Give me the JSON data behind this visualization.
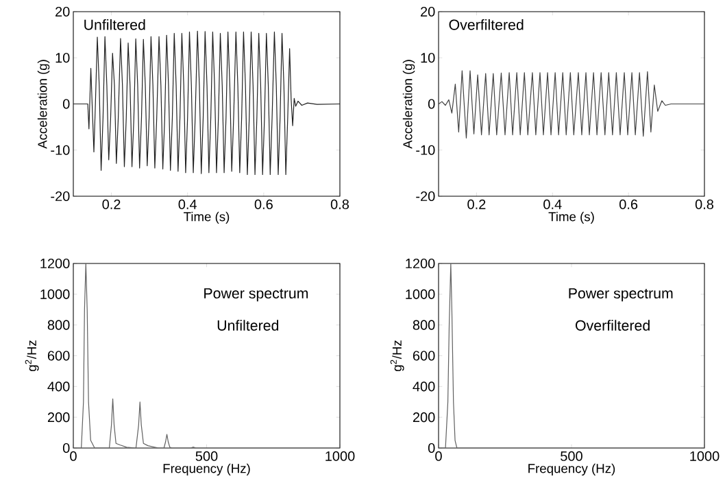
{
  "chart_data": [
    {
      "type": "line",
      "xlabel": "Time (s)",
      "ylabel": "Acceleration (g)",
      "xlim": [
        0.1,
        0.8
      ],
      "ylim": [
        -20,
        20
      ],
      "xticks": [
        0.2,
        0.4,
        0.6,
        0.8
      ],
      "yticks": [
        -20,
        -10,
        0,
        10,
        20
      ],
      "annotations": [
        "Unfiltered"
      ],
      "series": [
        {
          "color": "#202020",
          "x": [
            0.1,
            0.138,
            0.141,
            0.146,
            0.154,
            0.158,
            0.163,
            0.168,
            0.173,
            0.178,
            0.183,
            0.188,
            0.193,
            0.198,
            0.203,
            0.208,
            0.213,
            0.218,
            0.224,
            0.229,
            0.234,
            0.239,
            0.244,
            0.249,
            0.254,
            0.259,
            0.264,
            0.269,
            0.274,
            0.279,
            0.284,
            0.289,
            0.294,
            0.299,
            0.304,
            0.309,
            0.314,
            0.319,
            0.325,
            0.33,
            0.335,
            0.34,
            0.345,
            0.35,
            0.355,
            0.36,
            0.365,
            0.37,
            0.375,
            0.38,
            0.385,
            0.39,
            0.395,
            0.4,
            0.405,
            0.41,
            0.415,
            0.42,
            0.426,
            0.431,
            0.436,
            0.441,
            0.446,
            0.451,
            0.456,
            0.461,
            0.466,
            0.471,
            0.476,
            0.481,
            0.486,
            0.491,
            0.496,
            0.501,
            0.506,
            0.511,
            0.516,
            0.521,
            0.527,
            0.532,
            0.537,
            0.542,
            0.547,
            0.552,
            0.557,
            0.562,
            0.567,
            0.572,
            0.577,
            0.582,
            0.587,
            0.592,
            0.597,
            0.602,
            0.607,
            0.612,
            0.617,
            0.622,
            0.628,
            0.633,
            0.638,
            0.643,
            0.648,
            0.653,
            0.658,
            0.663,
            0.668,
            0.672,
            0.676,
            0.68,
            0.684,
            0.69,
            0.7,
            0.715,
            0.74,
            0.8
          ],
          "values": [
            0,
            0,
            -5.4,
            7.7,
            -10.4,
            0,
            14.5,
            4,
            -14.4,
            -3,
            14.6,
            4,
            -12.1,
            -3,
            11,
            4,
            -12.9,
            -3,
            14.2,
            4,
            -13.6,
            -3,
            13.2,
            4,
            -13.6,
            -3,
            14.1,
            4,
            -13.9,
            -3,
            14,
            4,
            -13.4,
            -3,
            14.6,
            4,
            -13.9,
            -3,
            14.6,
            4,
            -14.1,
            -3,
            14.9,
            4,
            -14.4,
            -3,
            15.3,
            4,
            -14.6,
            -3,
            15.3,
            4,
            -14.9,
            -3,
            15.6,
            4,
            -14.9,
            -3,
            15.8,
            4,
            -15.1,
            -3,
            15.7,
            4,
            -14.9,
            -3,
            15.6,
            4,
            -14.9,
            -3,
            15.3,
            4,
            -14.9,
            -3,
            15.6,
            4,
            -14.6,
            -3,
            15.6,
            4,
            -14.9,
            -3,
            15.6,
            4,
            -15.3,
            -3,
            15.6,
            4,
            -15.3,
            -3,
            15.3,
            4,
            -15.3,
            -3,
            15.3,
            4,
            -15.3,
            -3,
            15.6,
            4,
            -15.3,
            -3,
            15.3,
            4,
            -15.3,
            -3,
            12,
            1,
            -4.7,
            1.2,
            -0.5,
            0.6,
            -0.3,
            0.2,
            -0.1,
            0
          ]
        }
      ]
    },
    {
      "type": "line",
      "xlabel": "Time (s)",
      "ylabel": "Acceleration (g)",
      "xlim": [
        0.1,
        0.8
      ],
      "ylim": [
        -20,
        20
      ],
      "xticks": [
        0.2,
        0.4,
        0.6,
        0.8
      ],
      "yticks": [
        -20,
        -10,
        0,
        10,
        20
      ],
      "annotations": [
        "Overfiltered"
      ],
      "series": [
        {
          "color": "#404040",
          "x": [
            0.1,
            0.109,
            0.118,
            0.127,
            0.135,
            0.144,
            0.153,
            0.162,
            0.173,
            0.183,
            0.193,
            0.203,
            0.213,
            0.224,
            0.233,
            0.244,
            0.253,
            0.265,
            0.275,
            0.286,
            0.295,
            0.306,
            0.315,
            0.326,
            0.335,
            0.347,
            0.356,
            0.367,
            0.376,
            0.387,
            0.396,
            0.407,
            0.416,
            0.427,
            0.436,
            0.447,
            0.456,
            0.468,
            0.477,
            0.488,
            0.497,
            0.508,
            0.517,
            0.528,
            0.538,
            0.548,
            0.558,
            0.568,
            0.578,
            0.589,
            0.598,
            0.609,
            0.618,
            0.629,
            0.639,
            0.65,
            0.659,
            0.668,
            0.677,
            0.688,
            0.697,
            0.712,
            0.8
          ],
          "values": [
            0,
            0.5,
            -0.3,
            0.9,
            -2,
            4.3,
            -6.1,
            7.2,
            -7.4,
            7.2,
            -6.5,
            6.3,
            -6.7,
            6.6,
            -6.7,
            6.6,
            -6.7,
            6.7,
            -6.7,
            6.8,
            -6.7,
            6.8,
            -6.7,
            6.8,
            -6.7,
            6.8,
            -6.7,
            6.8,
            -6.7,
            6.8,
            -6.7,
            6.8,
            -6.7,
            6.8,
            -6.7,
            6.8,
            -6.7,
            6.8,
            -6.7,
            6.8,
            -6.7,
            6.8,
            -6.7,
            6.8,
            -6.7,
            6.8,
            -6.7,
            6.8,
            -6.7,
            6.8,
            -6.7,
            6.8,
            -6.7,
            6.8,
            -7,
            7,
            -6.1,
            4.1,
            -1.6,
            0.7,
            -0.3,
            0,
            0
          ]
        }
      ]
    },
    {
      "type": "line",
      "xlabel": "Frequency (Hz)",
      "ylabel": "g$^{2}$/Hz",
      "xlim": [
        0,
        1000
      ],
      "ylim": [
        0,
        1200
      ],
      "xticks": [
        0,
        500,
        1000
      ],
      "yticks": [
        0,
        200,
        400,
        600,
        800,
        1000,
        1200
      ],
      "annotations": [
        "Power spectrum",
        "Unfiltered"
      ],
      "series": [
        {
          "color": "#606060",
          "x": [
            0,
            30,
            38,
            42,
            47,
            52,
            57,
            65,
            80,
            135,
            143,
            148,
            153,
            160,
            175,
            200,
            235,
            245,
            250,
            255,
            263,
            280,
            320,
            340,
            346,
            351,
            356,
            362,
            370,
            440,
            450,
            460,
            1000
          ],
          "values": [
            0,
            0,
            300,
            900,
            1200,
            900,
            300,
            50,
            0,
            0,
            150,
            320,
            150,
            30,
            20,
            5,
            0,
            150,
            299,
            150,
            30,
            15,
            0,
            0,
            40,
            89,
            40,
            5,
            0,
            0,
            6,
            0,
            0
          ]
        }
      ]
    },
    {
      "type": "line",
      "xlabel": "Frequency (Hz)",
      "ylabel": "g$^{2}$/Hz",
      "xlim": [
        0,
        1000
      ],
      "ylim": [
        0,
        1200
      ],
      "xticks": [
        0,
        500,
        1000
      ],
      "yticks": [
        0,
        200,
        400,
        600,
        800,
        1000,
        1200
      ],
      "annotations": [
        "Power spectrum",
        "Overfiltered"
      ],
      "series": [
        {
          "color": "#606060",
          "x": [
            0,
            26,
            35,
            40,
            46,
            50,
            56,
            62,
            69,
            1000
          ],
          "values": [
            0,
            0,
            300,
            800,
            1200,
            900,
            300,
            50,
            0,
            0
          ]
        }
      ]
    }
  ]
}
